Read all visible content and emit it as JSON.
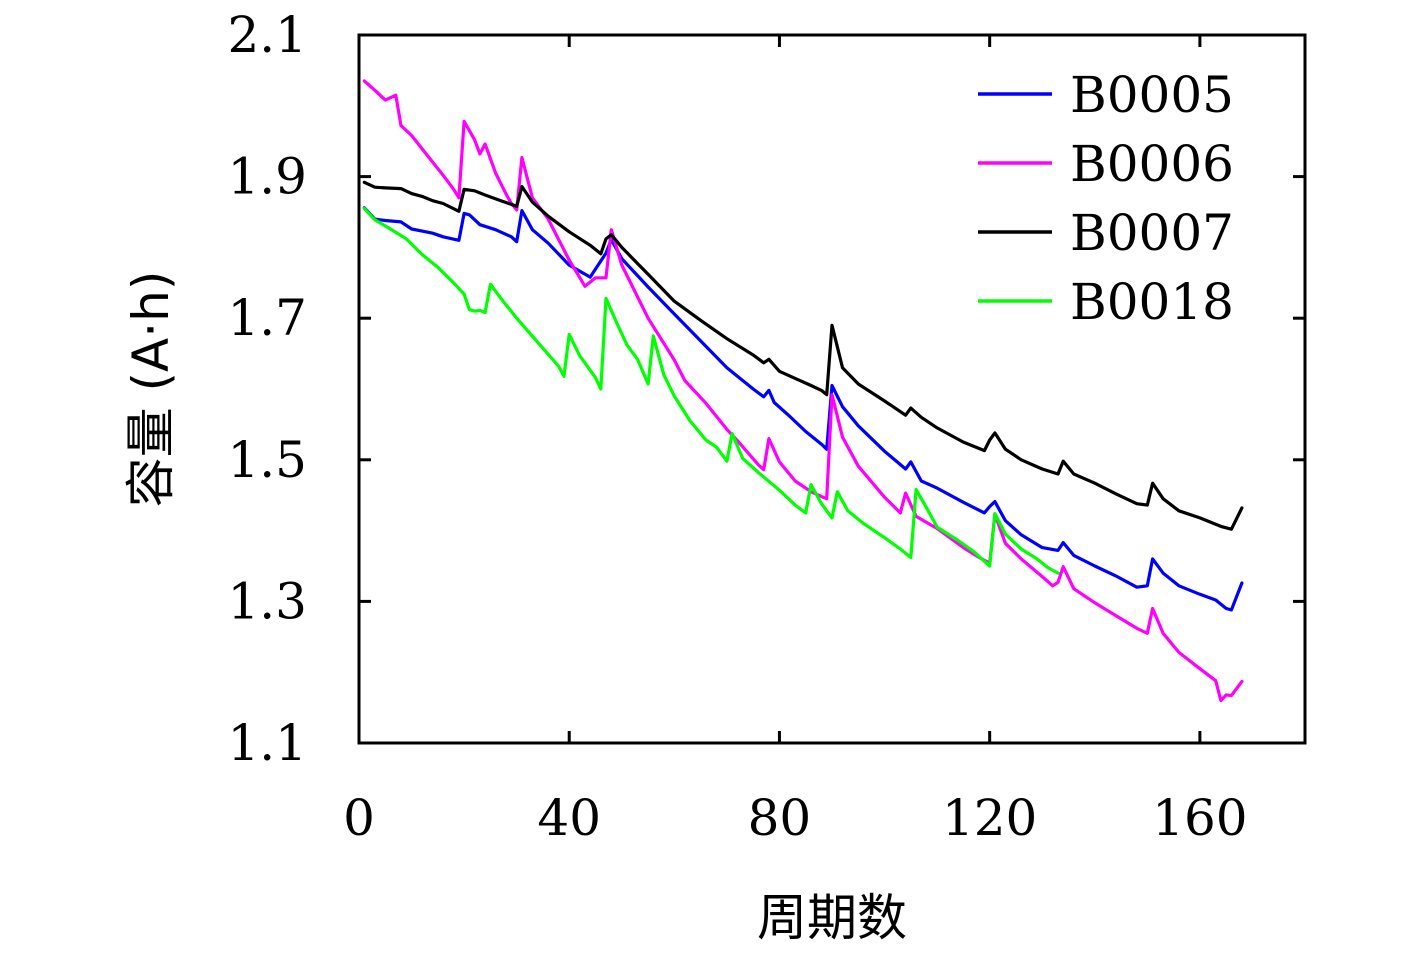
{
  "chart_data": {
    "type": "line",
    "title": "",
    "xlabel": "周期数",
    "ylabel": "容量 (A·h)",
    "xlim": [
      0,
      180
    ],
    "ylim": [
      1.1,
      2.1
    ],
    "xticks": [
      0,
      40,
      80,
      120,
      160
    ],
    "xtick_labels": [
      "0",
      "40",
      "80",
      "120",
      "160"
    ],
    "yticks": [
      1.1,
      1.3,
      1.5,
      1.7,
      1.9,
      2.1
    ],
    "ytick_labels": [
      "1.1",
      "1.3",
      "1.5",
      "1.7",
      "1.9",
      "2.1"
    ],
    "grid": false,
    "legend_position": "top-right",
    "series": [
      {
        "name": "B0005",
        "color": "#0000ff",
        "points": [
          [
            1,
            1.856
          ],
          [
            3,
            1.84
          ],
          [
            5,
            1.838
          ],
          [
            8,
            1.836
          ],
          [
            10,
            1.826
          ],
          [
            12,
            1.823
          ],
          [
            14,
            1.82
          ],
          [
            16,
            1.815
          ],
          [
            19,
            1.81
          ],
          [
            20,
            1.848
          ],
          [
            21,
            1.846
          ],
          [
            23,
            1.832
          ],
          [
            26,
            1.825
          ],
          [
            29,
            1.815
          ],
          [
            30,
            1.808
          ],
          [
            31,
            1.852
          ],
          [
            33,
            1.825
          ],
          [
            36,
            1.806
          ],
          [
            40,
            1.775
          ],
          [
            44,
            1.758
          ],
          [
            47,
            1.792
          ],
          [
            48,
            1.811
          ],
          [
            50,
            1.784
          ],
          [
            55,
            1.744
          ],
          [
            60,
            1.706
          ],
          [
            65,
            1.668
          ],
          [
            70,
            1.63
          ],
          [
            75,
            1.6
          ],
          [
            77,
            1.589
          ],
          [
            78,
            1.598
          ],
          [
            79,
            1.581
          ],
          [
            82,
            1.561
          ],
          [
            85,
            1.54
          ],
          [
            88,
            1.522
          ],
          [
            89,
            1.515
          ],
          [
            90,
            1.605
          ],
          [
            92,
            1.575
          ],
          [
            95,
            1.548
          ],
          [
            100,
            1.512
          ],
          [
            104,
            1.487
          ],
          [
            105,
            1.497
          ],
          [
            107,
            1.47
          ],
          [
            110,
            1.46
          ],
          [
            115,
            1.44
          ],
          [
            119,
            1.425
          ],
          [
            120,
            1.434
          ],
          [
            121,
            1.441
          ],
          [
            123,
            1.414
          ],
          [
            126,
            1.394
          ],
          [
            130,
            1.376
          ],
          [
            133,
            1.372
          ],
          [
            134,
            1.383
          ],
          [
            136,
            1.365
          ],
          [
            140,
            1.35
          ],
          [
            144,
            1.336
          ],
          [
            148,
            1.32
          ],
          [
            150,
            1.322
          ],
          [
            151,
            1.36
          ],
          [
            153,
            1.34
          ],
          [
            156,
            1.322
          ],
          [
            160,
            1.31
          ],
          [
            163,
            1.302
          ],
          [
            165,
            1.29
          ],
          [
            166,
            1.288
          ],
          [
            168,
            1.326
          ]
        ]
      },
      {
        "name": "B0006",
        "color": "#ff00ff",
        "points": [
          [
            1,
            2.035
          ],
          [
            3,
            2.022
          ],
          [
            5,
            2.008
          ],
          [
            7,
            2.015
          ],
          [
            8,
            1.972
          ],
          [
            10,
            1.958
          ],
          [
            13,
            1.93
          ],
          [
            16,
            1.902
          ],
          [
            18,
            1.882
          ],
          [
            19,
            1.87
          ],
          [
            20,
            1.978
          ],
          [
            22,
            1.952
          ],
          [
            23,
            1.932
          ],
          [
            24,
            1.946
          ],
          [
            26,
            1.905
          ],
          [
            28,
            1.875
          ],
          [
            29,
            1.862
          ],
          [
            30,
            1.853
          ],
          [
            31,
            1.927
          ],
          [
            33,
            1.87
          ],
          [
            36,
            1.84
          ],
          [
            40,
            1.782
          ],
          [
            43,
            1.745
          ],
          [
            45,
            1.757
          ],
          [
            47,
            1.757
          ],
          [
            48,
            1.825
          ],
          [
            50,
            1.775
          ],
          [
            55,
            1.7
          ],
          [
            60,
            1.641
          ],
          [
            62,
            1.612
          ],
          [
            66,
            1.58
          ],
          [
            70,
            1.543
          ],
          [
            72,
            1.527
          ],
          [
            76,
            1.493
          ],
          [
            77,
            1.486
          ],
          [
            78,
            1.53
          ],
          [
            80,
            1.497
          ],
          [
            83,
            1.47
          ],
          [
            86,
            1.455
          ],
          [
            88,
            1.448
          ],
          [
            89,
            1.445
          ],
          [
            90,
            1.592
          ],
          [
            92,
            1.532
          ],
          [
            95,
            1.491
          ],
          [
            100,
            1.447
          ],
          [
            103,
            1.425
          ],
          [
            104,
            1.453
          ],
          [
            106,
            1.42
          ],
          [
            110,
            1.403
          ],
          [
            115,
            1.376
          ],
          [
            118,
            1.362
          ],
          [
            120,
            1.354
          ],
          [
            121,
            1.423
          ],
          [
            123,
            1.382
          ],
          [
            126,
            1.36
          ],
          [
            130,
            1.335
          ],
          [
            132,
            1.322
          ],
          [
            133,
            1.327
          ],
          [
            134,
            1.349
          ],
          [
            136,
            1.318
          ],
          [
            140,
            1.298
          ],
          [
            144,
            1.28
          ],
          [
            148,
            1.262
          ],
          [
            150,
            1.255
          ],
          [
            151,
            1.29
          ],
          [
            153,
            1.255
          ],
          [
            156,
            1.228
          ],
          [
            160,
            1.205
          ],
          [
            163,
            1.188
          ],
          [
            164,
            1.16
          ],
          [
            165,
            1.168
          ],
          [
            166,
            1.167
          ],
          [
            168,
            1.187
          ]
        ]
      },
      {
        "name": "B0007",
        "color": "#000000",
        "points": [
          [
            1,
            1.892
          ],
          [
            3,
            1.885
          ],
          [
            5,
            1.884
          ],
          [
            8,
            1.883
          ],
          [
            10,
            1.876
          ],
          [
            12,
            1.872
          ],
          [
            14,
            1.866
          ],
          [
            16,
            1.862
          ],
          [
            19,
            1.851
          ],
          [
            20,
            1.882
          ],
          [
            22,
            1.88
          ],
          [
            24,
            1.874
          ],
          [
            27,
            1.866
          ],
          [
            30,
            1.858
          ],
          [
            31,
            1.886
          ],
          [
            33,
            1.864
          ],
          [
            36,
            1.844
          ],
          [
            40,
            1.822
          ],
          [
            44,
            1.803
          ],
          [
            46,
            1.791
          ],
          [
            47,
            1.812
          ],
          [
            48,
            1.818
          ],
          [
            50,
            1.8
          ],
          [
            55,
            1.762
          ],
          [
            60,
            1.724
          ],
          [
            65,
            1.697
          ],
          [
            70,
            1.671
          ],
          [
            75,
            1.648
          ],
          [
            77,
            1.637
          ],
          [
            78,
            1.642
          ],
          [
            80,
            1.625
          ],
          [
            83,
            1.615
          ],
          [
            86,
            1.605
          ],
          [
            88,
            1.598
          ],
          [
            89,
            1.592
          ],
          [
            90,
            1.69
          ],
          [
            92,
            1.63
          ],
          [
            95,
            1.607
          ],
          [
            100,
            1.583
          ],
          [
            104,
            1.563
          ],
          [
            105,
            1.573
          ],
          [
            107,
            1.56
          ],
          [
            110,
            1.545
          ],
          [
            115,
            1.525
          ],
          [
            119,
            1.513
          ],
          [
            120,
            1.528
          ],
          [
            121,
            1.538
          ],
          [
            123,
            1.515
          ],
          [
            126,
            1.5
          ],
          [
            130,
            1.487
          ],
          [
            133,
            1.48
          ],
          [
            134,
            1.498
          ],
          [
            136,
            1.48
          ],
          [
            140,
            1.467
          ],
          [
            144,
            1.452
          ],
          [
            148,
            1.438
          ],
          [
            150,
            1.436
          ],
          [
            151,
            1.467
          ],
          [
            153,
            1.445
          ],
          [
            156,
            1.428
          ],
          [
            160,
            1.418
          ],
          [
            164,
            1.406
          ],
          [
            166,
            1.402
          ],
          [
            168,
            1.432
          ]
        ]
      },
      {
        "name": "B0018",
        "color": "#00ff00",
        "points": [
          [
            1,
            1.855
          ],
          [
            3,
            1.839
          ],
          [
            6,
            1.826
          ],
          [
            9,
            1.812
          ],
          [
            12,
            1.79
          ],
          [
            15,
            1.772
          ],
          [
            18,
            1.75
          ],
          [
            20,
            1.734
          ],
          [
            21,
            1.712
          ],
          [
            22,
            1.71
          ],
          [
            23,
            1.711
          ],
          [
            24,
            1.708
          ],
          [
            25,
            1.748
          ],
          [
            27,
            1.728
          ],
          [
            30,
            1.7
          ],
          [
            34,
            1.666
          ],
          [
            38,
            1.632
          ],
          [
            39,
            1.618
          ],
          [
            40,
            1.677
          ],
          [
            42,
            1.647
          ],
          [
            45,
            1.616
          ],
          [
            46,
            1.6
          ],
          [
            47,
            1.728
          ],
          [
            49,
            1.694
          ],
          [
            51,
            1.662
          ],
          [
            53,
            1.642
          ],
          [
            55,
            1.607
          ],
          [
            56,
            1.675
          ],
          [
            58,
            1.62
          ],
          [
            60,
            1.59
          ],
          [
            63,
            1.555
          ],
          [
            66,
            1.528
          ],
          [
            68,
            1.518
          ],
          [
            70,
            1.498
          ],
          [
            71,
            1.537
          ],
          [
            73,
            1.502
          ],
          [
            76,
            1.482
          ],
          [
            80,
            1.457
          ],
          [
            83,
            1.436
          ],
          [
            85,
            1.425
          ],
          [
            86,
            1.465
          ],
          [
            88,
            1.438
          ],
          [
            90,
            1.418
          ],
          [
            91,
            1.455
          ],
          [
            93,
            1.428
          ],
          [
            96,
            1.41
          ],
          [
            100,
            1.39
          ],
          [
            103,
            1.374
          ],
          [
            105,
            1.362
          ],
          [
            106,
            1.458
          ],
          [
            108,
            1.432
          ],
          [
            110,
            1.405
          ],
          [
            114,
            1.386
          ],
          [
            117,
            1.37
          ],
          [
            120,
            1.35
          ],
          [
            121,
            1.424
          ],
          [
            123,
            1.395
          ],
          [
            126,
            1.374
          ],
          [
            129,
            1.36
          ],
          [
            131,
            1.348
          ],
          [
            133,
            1.34
          ]
        ]
      }
    ]
  }
}
